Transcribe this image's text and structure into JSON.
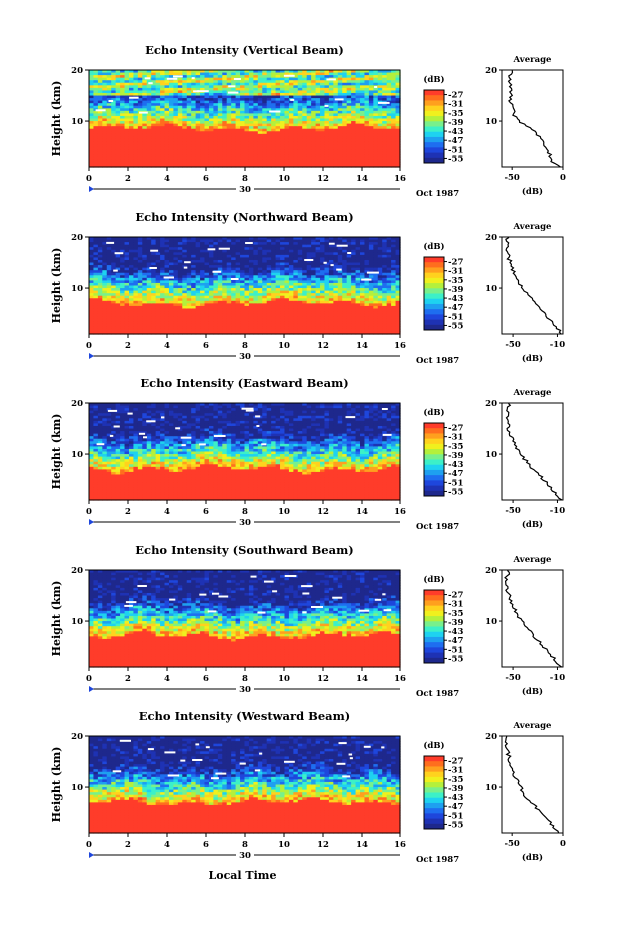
{
  "figure": {
    "xlabel": "Local Time",
    "date_label": "Oct 1987",
    "day_label": "30",
    "ylabel": "Height (km)",
    "colorbar_label": "(dB)",
    "colorbar_ticks": [
      "-27",
      "-31",
      "-35",
      "-39",
      "-43",
      "-47",
      "-51",
      "-55"
    ],
    "colorbar_colors": [
      "#ff3c2a",
      "#ff6e1e",
      "#ffa01e",
      "#ffd21e",
      "#f0f01e",
      "#b4f03c",
      "#78f08c",
      "#3cf0c8",
      "#1ed2f0",
      "#1ea0f0",
      "#1e6ef0",
      "#1e46dc",
      "#1e32b4",
      "#1e288c"
    ],
    "average_title": "Average",
    "average_xlabel": "(dB)",
    "x_ticks": [
      "0",
      "2",
      "4",
      "6",
      "8",
      "10",
      "12",
      "14",
      "16"
    ],
    "y_ticks": [
      "20",
      "10"
    ]
  },
  "chart_data": [
    {
      "type": "heatmap",
      "title": "Echo Intensity (Vertical Beam)",
      "x_range": [
        0,
        16
      ],
      "y_range": [
        1,
        20
      ],
      "color_range_dB": [
        -55,
        -27
      ],
      "echo_top_km": 8.5,
      "avg_tick_labels": [
        "-50",
        "0"
      ],
      "average_profile": {
        "height_km": [
          1,
          2,
          4,
          6,
          8,
          10,
          11,
          12,
          14,
          16,
          18,
          20
        ],
        "dB": [
          -4,
          -10,
          -14,
          -20,
          -28,
          -44,
          -48,
          -47,
          -52,
          -51,
          -53,
          -50
        ]
      }
    },
    {
      "type": "heatmap",
      "title": "Echo Intensity (Northward Beam)",
      "x_range": [
        0,
        16
      ],
      "y_range": [
        1,
        20
      ],
      "color_range_dB": [
        -55,
        -27
      ],
      "echo_top_km": 7.0,
      "avg_tick_labels": [
        "-50",
        "-10"
      ],
      "average_profile": {
        "height_km": [
          1,
          2,
          4,
          6,
          8,
          10,
          12,
          14,
          16,
          18,
          20
        ],
        "dB": [
          -6,
          -10,
          -18,
          -26,
          -34,
          -41,
          -47,
          -51,
          -54,
          -56,
          -55
        ]
      }
    },
    {
      "type": "heatmap",
      "title": "Echo Intensity (Eastward Beam)",
      "x_range": [
        0,
        16
      ],
      "y_range": [
        1,
        20
      ],
      "color_range_dB": [
        -55,
        -27
      ],
      "echo_top_km": 7.0,
      "avg_tick_labels": [
        "-50",
        "-10"
      ],
      "average_profile": {
        "height_km": [
          1,
          2,
          4,
          6,
          8,
          10,
          12,
          14,
          16,
          18,
          20
        ],
        "dB": [
          -6,
          -10,
          -18,
          -27,
          -36,
          -43,
          -49,
          -53,
          -55,
          -55,
          -54
        ]
      }
    },
    {
      "type": "heatmap",
      "title": "Echo Intensity (Southward Beam)",
      "x_range": [
        0,
        16
      ],
      "y_range": [
        1,
        20
      ],
      "color_range_dB": [
        -55,
        -27
      ],
      "echo_top_km": 7.0,
      "avg_tick_labels": [
        "-50",
        "-10"
      ],
      "average_profile": {
        "height_km": [
          1,
          2,
          4,
          6,
          8,
          10,
          12,
          14,
          16,
          18,
          20
        ],
        "dB": [
          -7,
          -10,
          -19,
          -27,
          -35,
          -42,
          -48,
          -52,
          -55,
          -56,
          -54
        ]
      }
    },
    {
      "type": "heatmap",
      "title": "Echo Intensity (Westward Beam)",
      "x_range": [
        0,
        16
      ],
      "y_range": [
        1,
        20
      ],
      "color_range_dB": [
        -55,
        -27
      ],
      "echo_top_km": 7.0,
      "avg_tick_labels": [
        "-50",
        "0"
      ],
      "average_profile": {
        "height_km": [
          1,
          2,
          4,
          6,
          8,
          10,
          12,
          14,
          16,
          18,
          20
        ],
        "dB": [
          -3,
          -8,
          -17,
          -26,
          -36,
          -42,
          -47,
          -51,
          -53,
          -56,
          -55
        ]
      }
    }
  ]
}
